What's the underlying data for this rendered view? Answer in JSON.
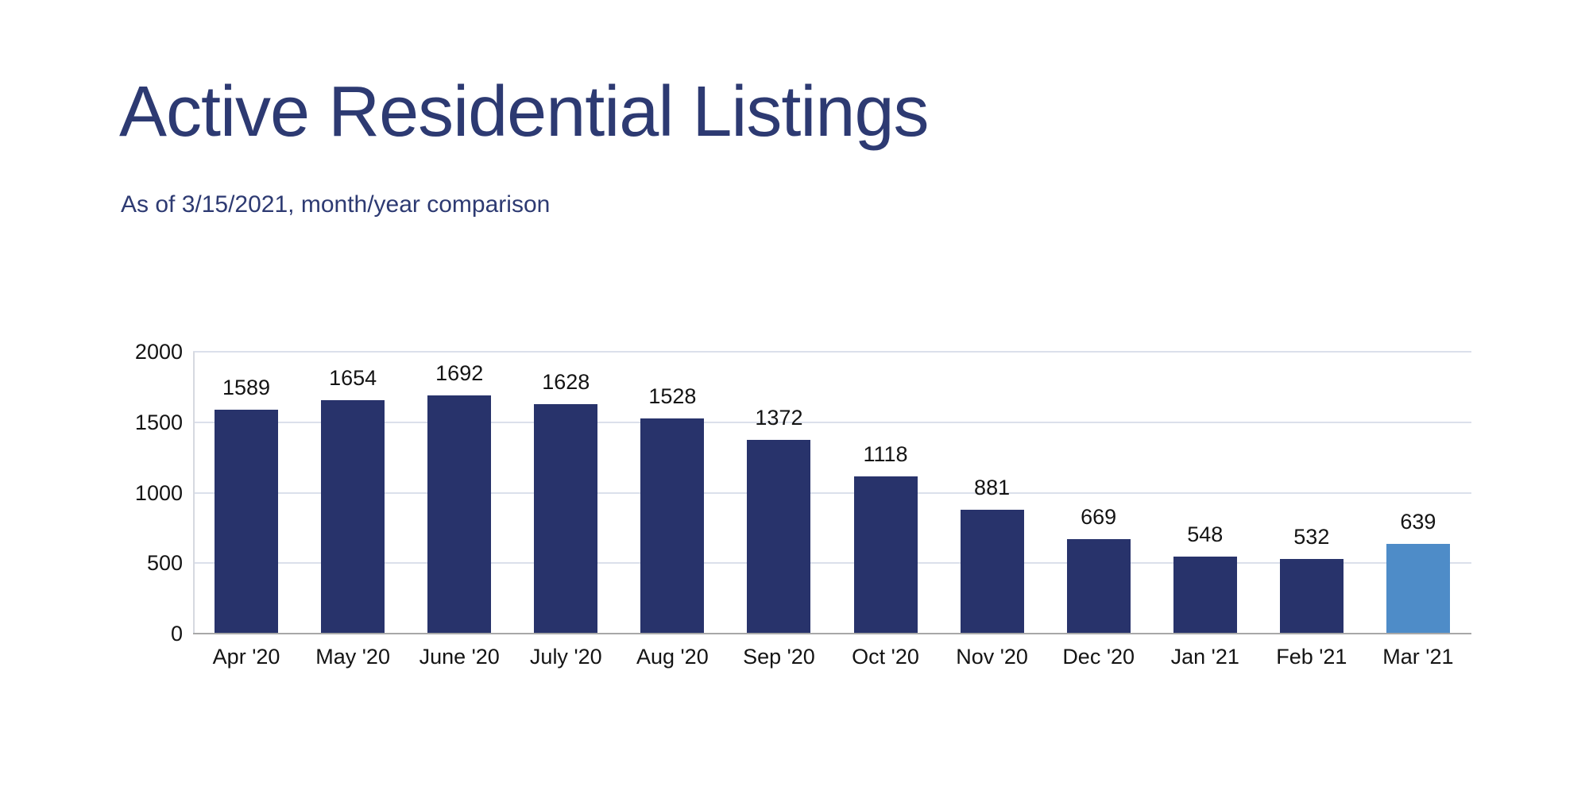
{
  "header": {
    "title": "Active Residential Listings",
    "subtitle": "As of 3/15/2021, month/year comparison"
  },
  "chart_data": {
    "type": "bar",
    "title": "Active Residential Listings",
    "subtitle": "As of 3/15/2021, month/year comparison",
    "categories": [
      "Apr '20",
      "May '20",
      "June '20",
      "July '20",
      "Aug '20",
      "Sep '20",
      "Oct '20",
      "Nov '20",
      "Dec '20",
      "Jan '21",
      "Feb '21",
      "Mar '21"
    ],
    "values": [
      1589,
      1654,
      1692,
      1628,
      1528,
      1372,
      1118,
      881,
      669,
      548,
      532,
      639
    ],
    "xlabel": "",
    "ylabel": "",
    "ylim": [
      0,
      2000
    ],
    "yticks": [
      0,
      500,
      1000,
      1500,
      2000
    ],
    "grid": true,
    "legend": false,
    "data_labels": true,
    "bar_color": "#28336B",
    "highlight_index": 11,
    "highlight_color": "#4E8CC8",
    "gridline_color": "#DBE0EB",
    "axis_line_color": "#A8A8A8",
    "title_color": "#2D3A72",
    "label_color": "#141414"
  }
}
